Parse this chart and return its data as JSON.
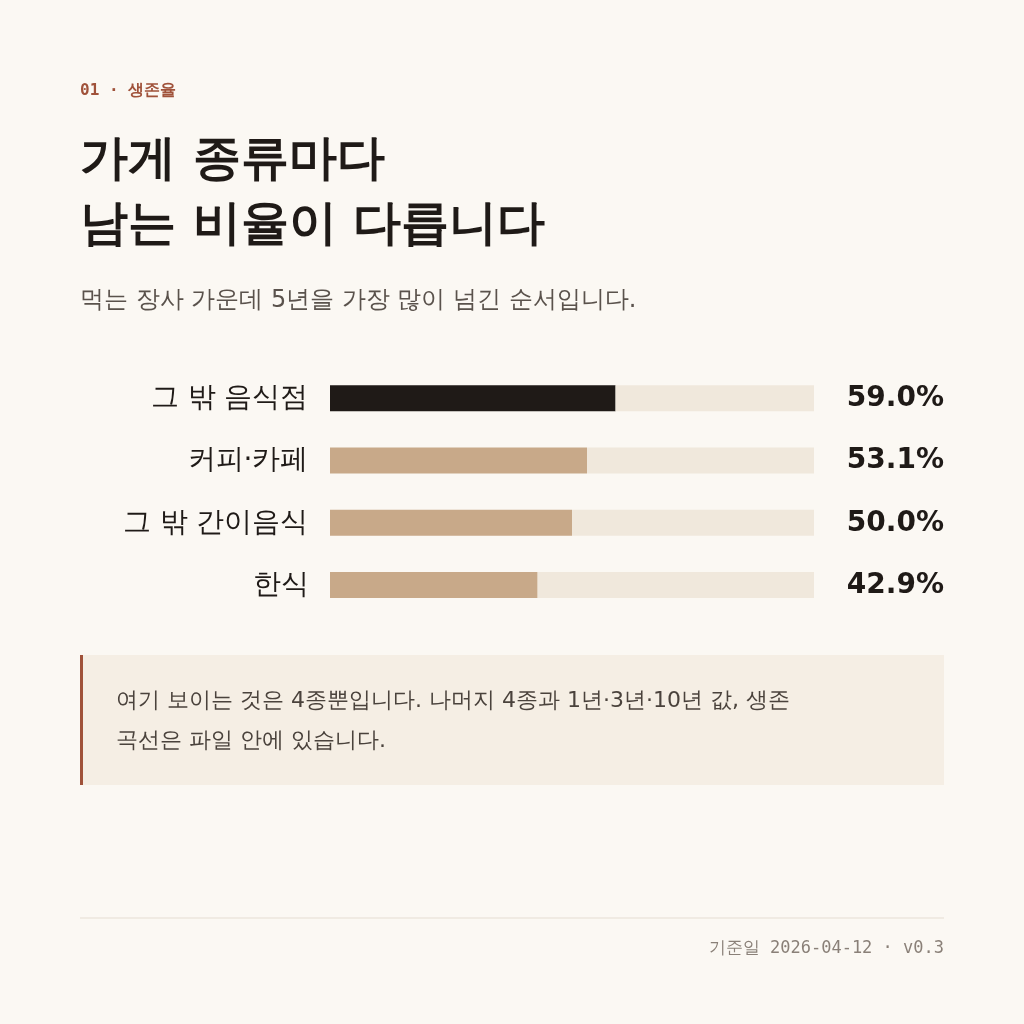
{
  "chart_data": {
    "type": "bar",
    "orientation": "horizontal",
    "stacked": true,
    "title": "가게 종류마다\n남는 비율이 다릅니다",
    "subtitle": "먹는 장사 가운데 5년을 가장 많이 넘긴 순서입니다.",
    "categories": [
      "그 밖 음식점",
      "커피·카페",
      "그 밖 간이음식",
      "한식"
    ],
    "series": [
      {
        "colors": [
          "#1f1a17",
          "#c8a989",
          "#c8a989",
          "#c8a989"
        ],
        "values": [
          59.0,
          53.1,
          50.0,
          42.9
        ],
        "value_labels": [
          "59.0%",
          "53.1%",
          "50.0%",
          "42.9%"
        ]
      },
      {
        "color": "#f0e8dc",
        "values": [
          41.0,
          46.9,
          50.0,
          57.1
        ]
      }
    ],
    "xlim": [
      0,
      100
    ],
    "tick_labels": "y",
    "grid": false,
    "annotations": [
      "01 · 생존율",
      "여기 보이는 것은 4종뿐입니다. 나머지 4종과 1년·3년·10년 값, 생존 곡선은 파일 안에 있습니다.",
      "기준일 2026-04-12 · v0.3"
    ]
  }
}
